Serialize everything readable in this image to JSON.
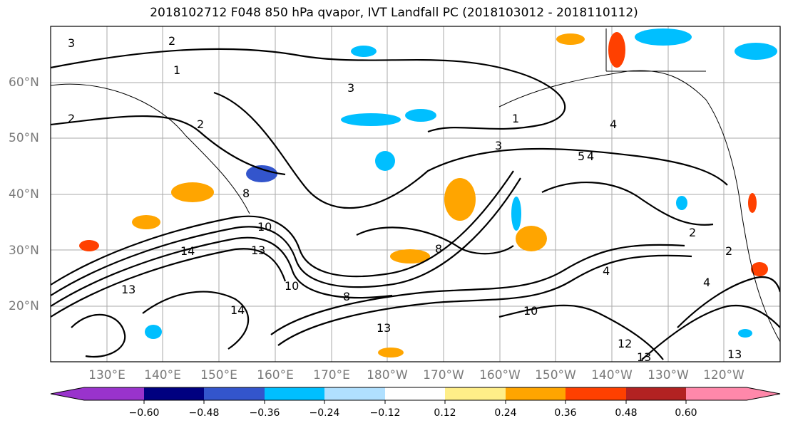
{
  "title": "2018102712 F048 850 hPa qvapor, IVT Landfall PC (2018103012 - 2018110112)",
  "map": {
    "lat_labels": [
      "60°N",
      "50°N",
      "40°N",
      "30°N",
      "20°N"
    ],
    "lon_labels": [
      "130°E",
      "140°E",
      "150°E",
      "160°E",
      "170°E",
      "180°W",
      "170°W",
      "160°W",
      "150°W",
      "140°W",
      "130°W",
      "120°W"
    ],
    "contour_labels": [
      "2",
      "3",
      "1",
      "2",
      "3",
      "1",
      "4",
      "3",
      "5",
      "4",
      "2",
      "8",
      "10",
      "13",
      "14",
      "13",
      "10",
      "14",
      "8",
      "13",
      "8",
      "10",
      "12",
      "13",
      "13",
      "4",
      "2",
      "2",
      "4"
    ]
  },
  "colorbar": {
    "ticks": [
      "−0.60",
      "−0.48",
      "−0.36",
      "−0.24",
      "−0.12",
      "0.12",
      "0.24",
      "0.36",
      "0.48",
      "0.60"
    ],
    "colors": [
      "#9933cc",
      "#000080",
      "#3355cc",
      "#00bfff",
      "#b0e0ff",
      "#ffffff",
      "#ffee88",
      "#ffa500",
      "#ff4000",
      "#b22222",
      "#ff88aa"
    ]
  }
}
